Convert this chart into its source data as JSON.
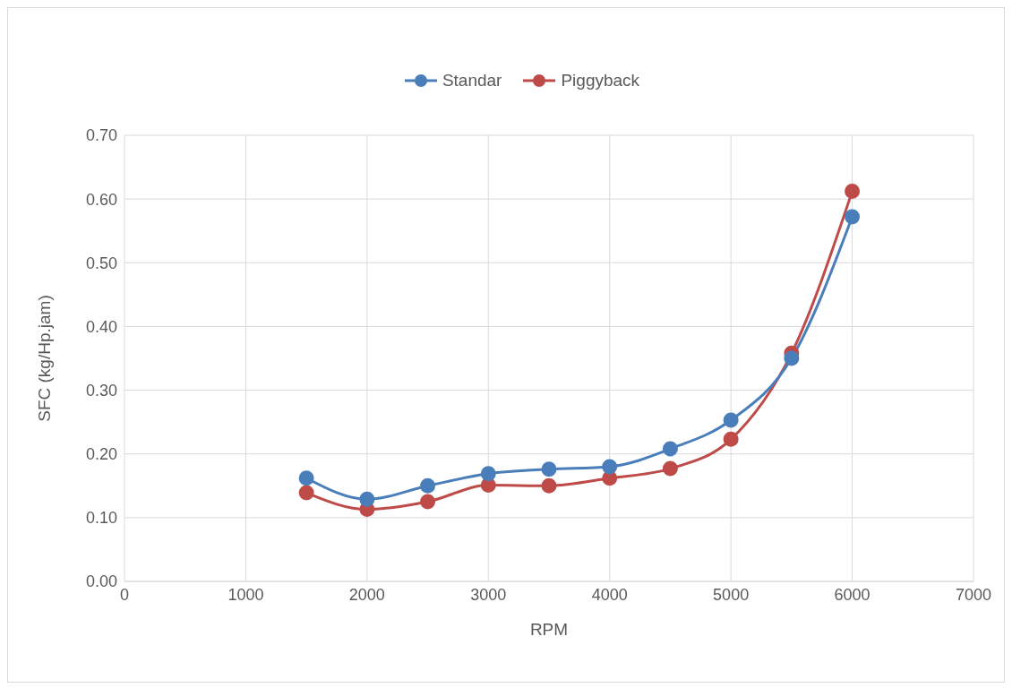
{
  "chart_data": {
    "type": "line",
    "xlabel": "RPM",
    "ylabel": "SFC (kg/Hp.jam)",
    "x": [
      1500,
      2000,
      2500,
      3000,
      3500,
      4000,
      4500,
      5000,
      5500,
      6000
    ],
    "series": [
      {
        "name": "Standar",
        "color": "#4a7ebb",
        "values": [
          0.162,
          0.129,
          0.15,
          0.169,
          0.176,
          0.18,
          0.208,
          0.253,
          0.35,
          0.572
        ]
      },
      {
        "name": "Piggyback",
        "color": "#be4b48",
        "values": [
          0.139,
          0.113,
          0.125,
          0.151,
          0.15,
          0.162,
          0.177,
          0.223,
          0.358,
          0.612
        ]
      }
    ],
    "xlim": [
      0,
      7000
    ],
    "xticks": [
      0,
      1000,
      2000,
      3000,
      4000,
      5000,
      6000,
      7000
    ],
    "ylim": [
      0,
      0.7
    ],
    "yticks": [
      {
        "value": 0,
        "label": "0.00"
      },
      {
        "value": 0.1,
        "label": "0.10"
      },
      {
        "value": 0.2,
        "label": "0.20"
      },
      {
        "value": 0.3,
        "label": "0.30"
      },
      {
        "value": 0.4,
        "label": "0.40"
      },
      {
        "value": 0.5,
        "label": "0.50"
      },
      {
        "value": 0.6,
        "label": "0.60"
      },
      {
        "value": 0.7,
        "label": "0.70"
      }
    ],
    "grid": true,
    "legend": "top",
    "marker": "circle",
    "line_style": "solid"
  }
}
